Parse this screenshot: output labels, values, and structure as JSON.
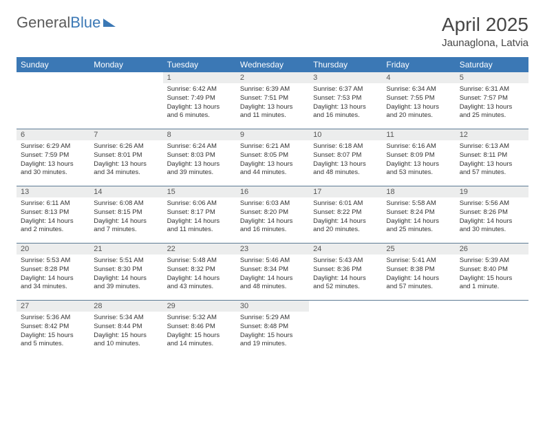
{
  "brand": {
    "part1": "General",
    "part2": "Blue"
  },
  "title": "April 2025",
  "location": "Jaunaglona, Latvia",
  "colors": {
    "header_bg": "#3b78b5",
    "daynum_bg": "#eceded",
    "rule": "#5c7a94"
  },
  "weekdays": [
    "Sunday",
    "Monday",
    "Tuesday",
    "Wednesday",
    "Thursday",
    "Friday",
    "Saturday"
  ],
  "weeks": [
    [
      {
        "n": "",
        "t": ""
      },
      {
        "n": "",
        "t": ""
      },
      {
        "n": "1",
        "t": "Sunrise: 6:42 AM\nSunset: 7:49 PM\nDaylight: 13 hours and 6 minutes."
      },
      {
        "n": "2",
        "t": "Sunrise: 6:39 AM\nSunset: 7:51 PM\nDaylight: 13 hours and 11 minutes."
      },
      {
        "n": "3",
        "t": "Sunrise: 6:37 AM\nSunset: 7:53 PM\nDaylight: 13 hours and 16 minutes."
      },
      {
        "n": "4",
        "t": "Sunrise: 6:34 AM\nSunset: 7:55 PM\nDaylight: 13 hours and 20 minutes."
      },
      {
        "n": "5",
        "t": "Sunrise: 6:31 AM\nSunset: 7:57 PM\nDaylight: 13 hours and 25 minutes."
      }
    ],
    [
      {
        "n": "6",
        "t": "Sunrise: 6:29 AM\nSunset: 7:59 PM\nDaylight: 13 hours and 30 minutes."
      },
      {
        "n": "7",
        "t": "Sunrise: 6:26 AM\nSunset: 8:01 PM\nDaylight: 13 hours and 34 minutes."
      },
      {
        "n": "8",
        "t": "Sunrise: 6:24 AM\nSunset: 8:03 PM\nDaylight: 13 hours and 39 minutes."
      },
      {
        "n": "9",
        "t": "Sunrise: 6:21 AM\nSunset: 8:05 PM\nDaylight: 13 hours and 44 minutes."
      },
      {
        "n": "10",
        "t": "Sunrise: 6:18 AM\nSunset: 8:07 PM\nDaylight: 13 hours and 48 minutes."
      },
      {
        "n": "11",
        "t": "Sunrise: 6:16 AM\nSunset: 8:09 PM\nDaylight: 13 hours and 53 minutes."
      },
      {
        "n": "12",
        "t": "Sunrise: 6:13 AM\nSunset: 8:11 PM\nDaylight: 13 hours and 57 minutes."
      }
    ],
    [
      {
        "n": "13",
        "t": "Sunrise: 6:11 AM\nSunset: 8:13 PM\nDaylight: 14 hours and 2 minutes."
      },
      {
        "n": "14",
        "t": "Sunrise: 6:08 AM\nSunset: 8:15 PM\nDaylight: 14 hours and 7 minutes."
      },
      {
        "n": "15",
        "t": "Sunrise: 6:06 AM\nSunset: 8:17 PM\nDaylight: 14 hours and 11 minutes."
      },
      {
        "n": "16",
        "t": "Sunrise: 6:03 AM\nSunset: 8:20 PM\nDaylight: 14 hours and 16 minutes."
      },
      {
        "n": "17",
        "t": "Sunrise: 6:01 AM\nSunset: 8:22 PM\nDaylight: 14 hours and 20 minutes."
      },
      {
        "n": "18",
        "t": "Sunrise: 5:58 AM\nSunset: 8:24 PM\nDaylight: 14 hours and 25 minutes."
      },
      {
        "n": "19",
        "t": "Sunrise: 5:56 AM\nSunset: 8:26 PM\nDaylight: 14 hours and 30 minutes."
      }
    ],
    [
      {
        "n": "20",
        "t": "Sunrise: 5:53 AM\nSunset: 8:28 PM\nDaylight: 14 hours and 34 minutes."
      },
      {
        "n": "21",
        "t": "Sunrise: 5:51 AM\nSunset: 8:30 PM\nDaylight: 14 hours and 39 minutes."
      },
      {
        "n": "22",
        "t": "Sunrise: 5:48 AM\nSunset: 8:32 PM\nDaylight: 14 hours and 43 minutes."
      },
      {
        "n": "23",
        "t": "Sunrise: 5:46 AM\nSunset: 8:34 PM\nDaylight: 14 hours and 48 minutes."
      },
      {
        "n": "24",
        "t": "Sunrise: 5:43 AM\nSunset: 8:36 PM\nDaylight: 14 hours and 52 minutes."
      },
      {
        "n": "25",
        "t": "Sunrise: 5:41 AM\nSunset: 8:38 PM\nDaylight: 14 hours and 57 minutes."
      },
      {
        "n": "26",
        "t": "Sunrise: 5:39 AM\nSunset: 8:40 PM\nDaylight: 15 hours and 1 minute."
      }
    ],
    [
      {
        "n": "27",
        "t": "Sunrise: 5:36 AM\nSunset: 8:42 PM\nDaylight: 15 hours and 5 minutes."
      },
      {
        "n": "28",
        "t": "Sunrise: 5:34 AM\nSunset: 8:44 PM\nDaylight: 15 hours and 10 minutes."
      },
      {
        "n": "29",
        "t": "Sunrise: 5:32 AM\nSunset: 8:46 PM\nDaylight: 15 hours and 14 minutes."
      },
      {
        "n": "30",
        "t": "Sunrise: 5:29 AM\nSunset: 8:48 PM\nDaylight: 15 hours and 19 minutes."
      },
      {
        "n": "",
        "t": ""
      },
      {
        "n": "",
        "t": ""
      },
      {
        "n": "",
        "t": ""
      }
    ]
  ]
}
